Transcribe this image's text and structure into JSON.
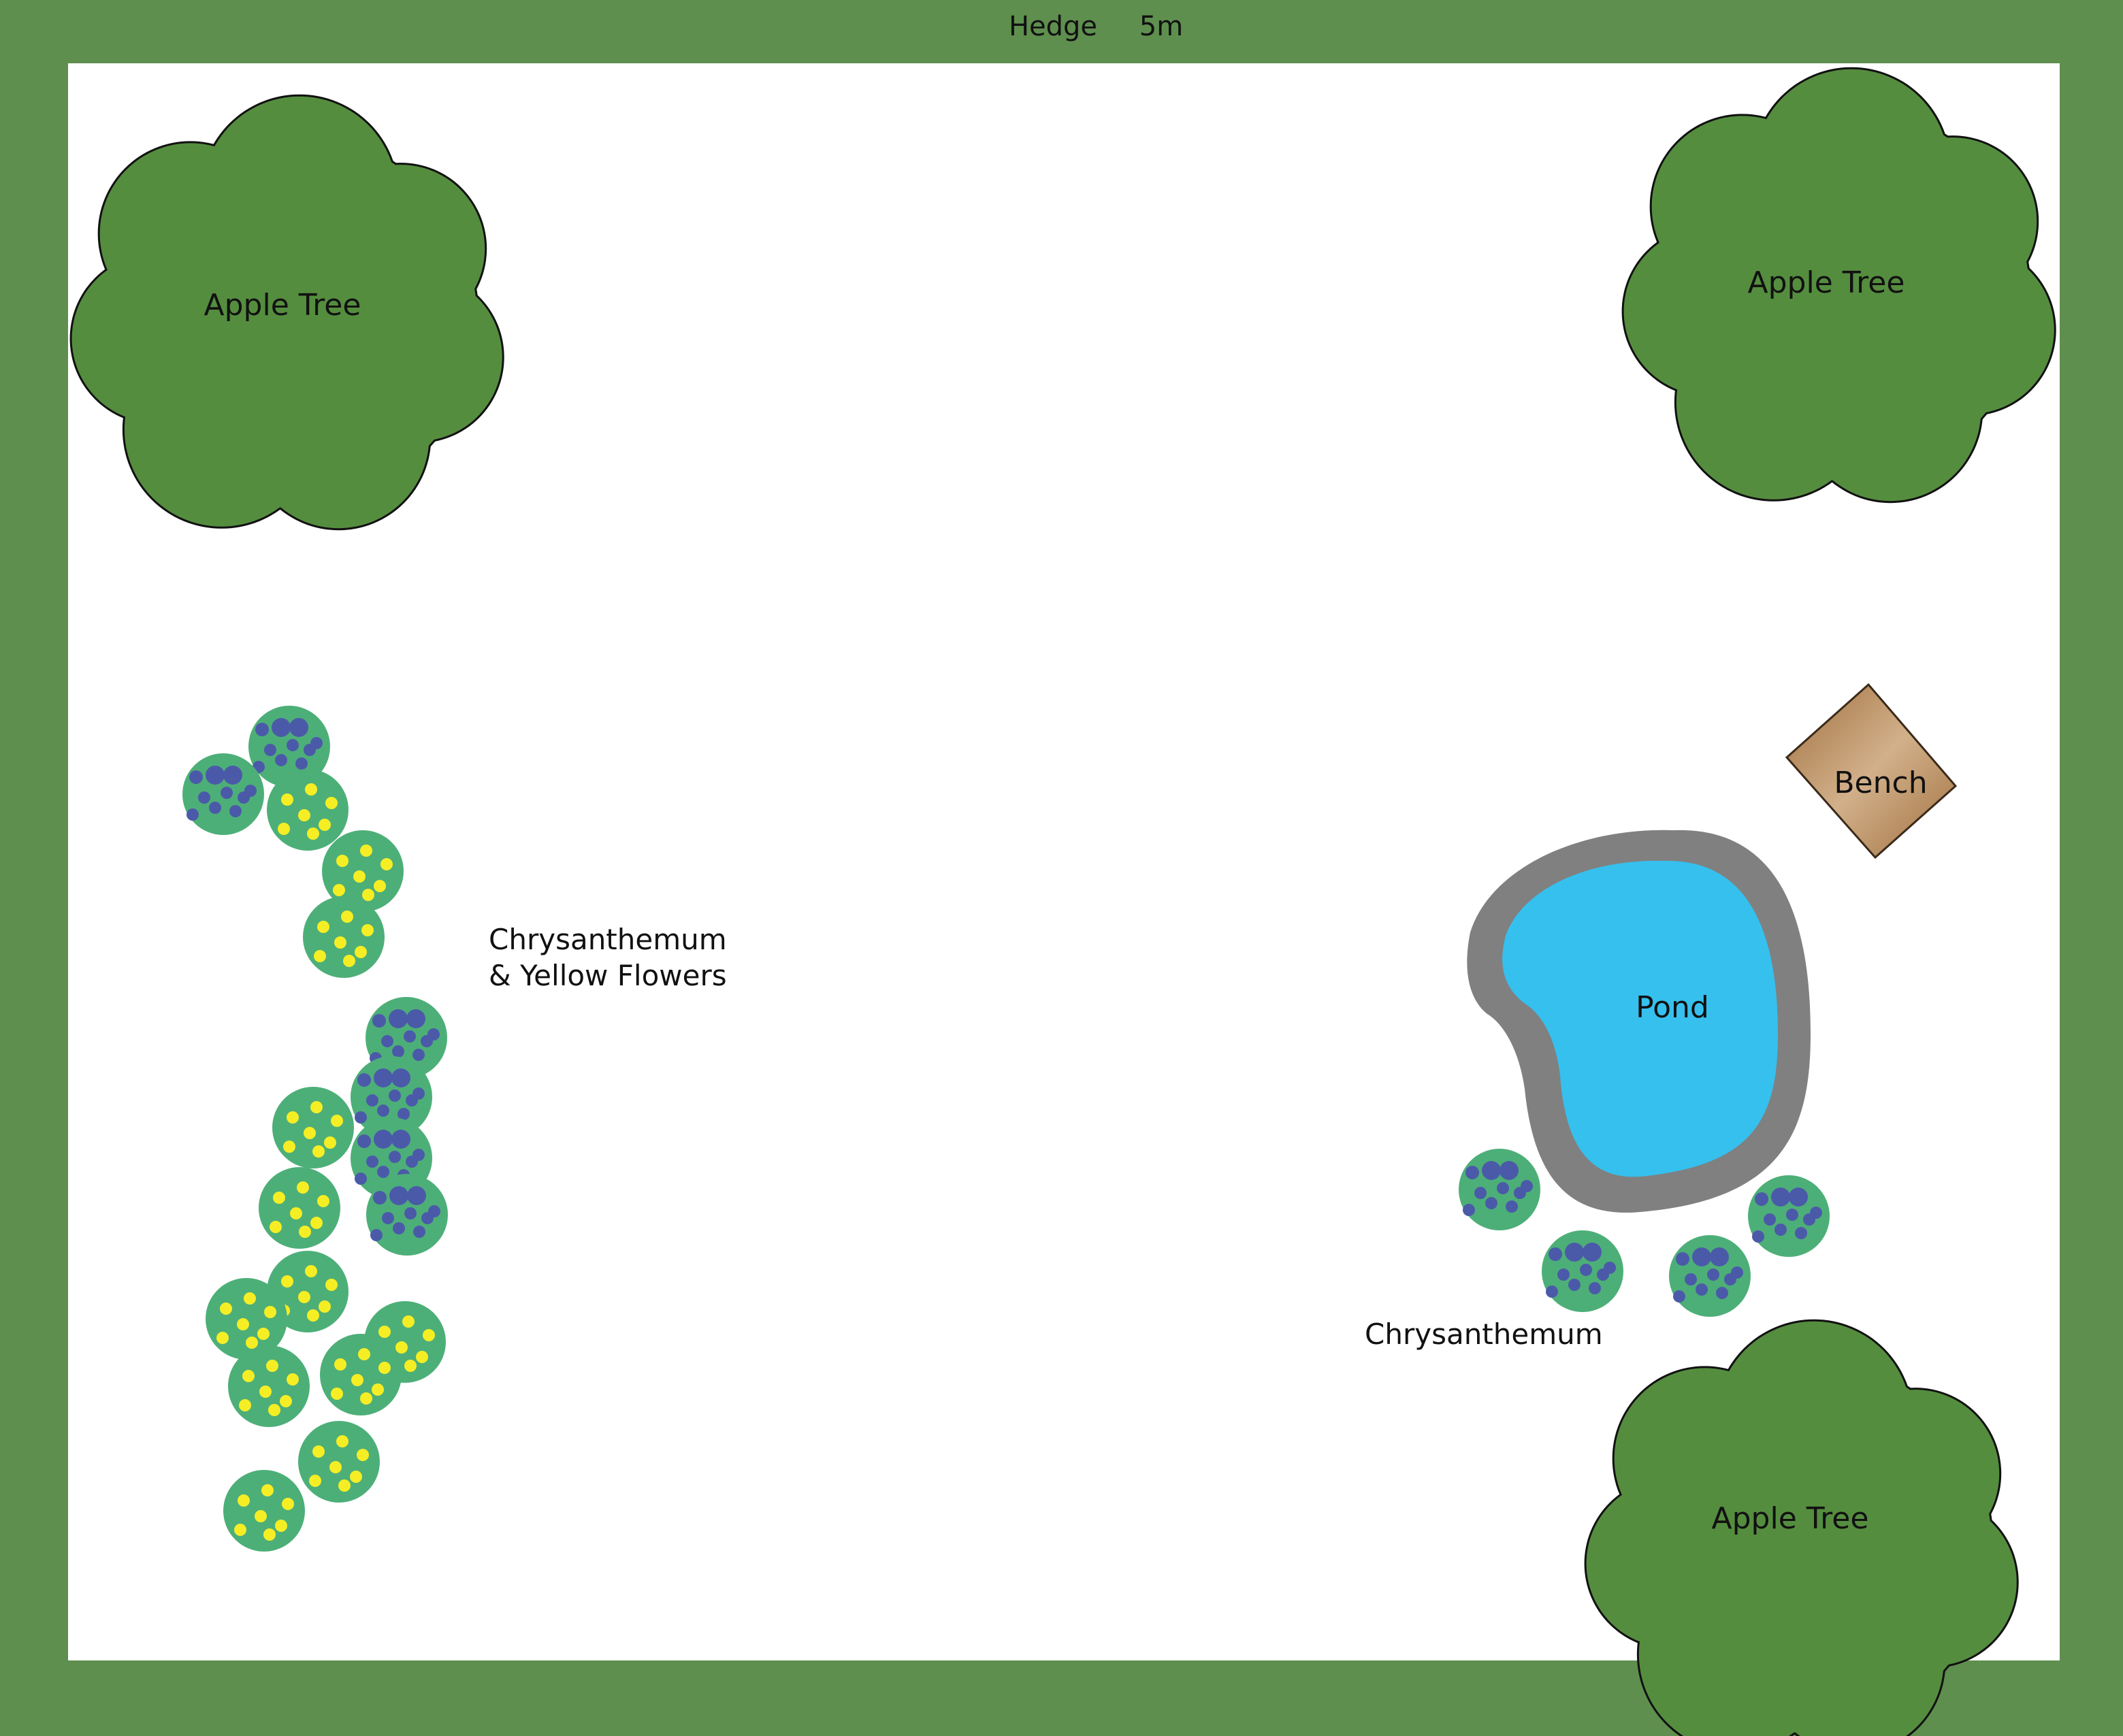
{
  "colors": {
    "hedge": "#5f8f4e",
    "lawn": "#ffffff",
    "tree": "#558d3f",
    "shrub": "#4daf78",
    "chrysanthemum_flower": "#4b5aa8",
    "yellow_flower": "#f6ee24",
    "pond_water": "#36c0ee",
    "pond_edge": "#808080",
    "bench": "#b8875a"
  },
  "hedge": {
    "label": "Hedge",
    "dimension": "5m"
  },
  "trees": [
    {
      "label": "Apple Tree"
    },
    {
      "label": "Apple Tree"
    },
    {
      "label": "Apple Tree"
    }
  ],
  "pond": {
    "label": "Pond"
  },
  "bench": {
    "label": "Bench"
  },
  "beds": {
    "left": {
      "label_line1": "Chrysanthemum",
      "label_line2": "& Yellow Flowers"
    },
    "right": {
      "label": "Chrysanthemum"
    }
  }
}
